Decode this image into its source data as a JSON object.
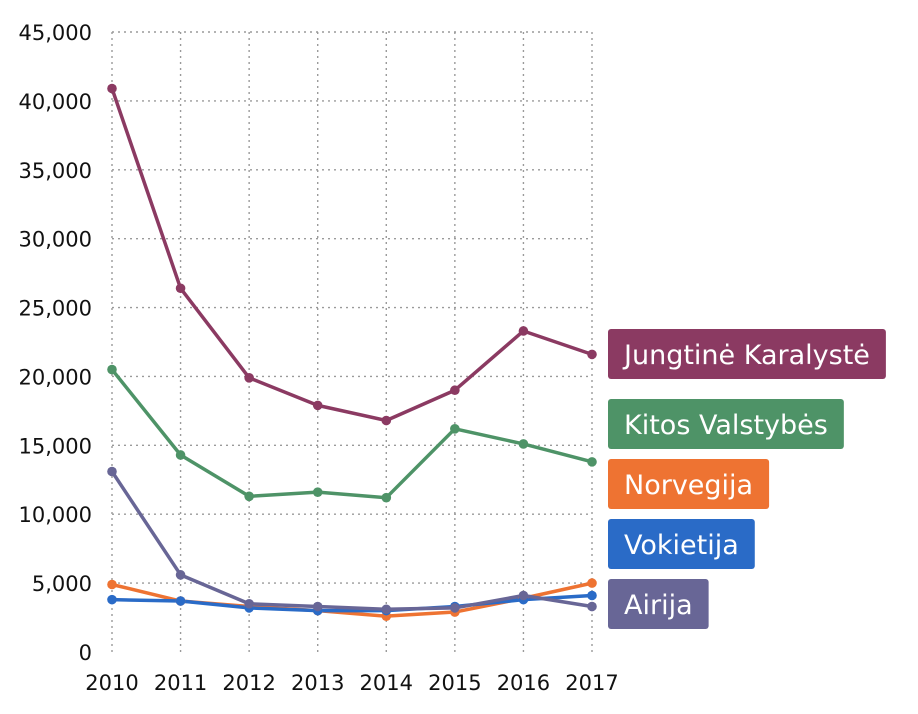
{
  "chart_data": {
    "type": "line",
    "title": "",
    "xlabel": "",
    "ylabel": "",
    "x": [
      "2010",
      "2011",
      "2012",
      "2013",
      "2014",
      "2015",
      "2016",
      "2017"
    ],
    "ylim": [
      0,
      45000
    ],
    "yticks": [
      0,
      5000,
      10000,
      15000,
      20000,
      25000,
      30000,
      35000,
      40000,
      45000
    ],
    "ytick_labels": [
      "0",
      "5,000",
      "10,000",
      "15,000",
      "20,000",
      "25,000",
      "30,000",
      "35,000",
      "40,000",
      "45,000"
    ],
    "grid": true,
    "legend_placement": "right, labels at series ends",
    "series": [
      {
        "name": "Jungtinė Karalystė",
        "color": "#8b3a62",
        "values": [
          40900,
          26400,
          19900,
          17900,
          16800,
          19000,
          23300,
          21600
        ]
      },
      {
        "name": "Kitos Valstybės",
        "color": "#4e9367",
        "values": [
          20500,
          14300,
          11300,
          11600,
          11200,
          16200,
          15100,
          13800
        ]
      },
      {
        "name": "Norvegija",
        "color": "#ee7332",
        "values": [
          4900,
          3700,
          3300,
          3000,
          2600,
          2900,
          3900,
          5000
        ]
      },
      {
        "name": "Vokietija",
        "color": "#2a6bc7",
        "values": [
          3800,
          3700,
          3200,
          3000,
          3000,
          3300,
          3800,
          4100
        ]
      },
      {
        "name": "Airija",
        "color": "#686696",
        "values": [
          13100,
          5600,
          3500,
          3300,
          3100,
          3200,
          4100,
          3300
        ]
      }
    ]
  }
}
